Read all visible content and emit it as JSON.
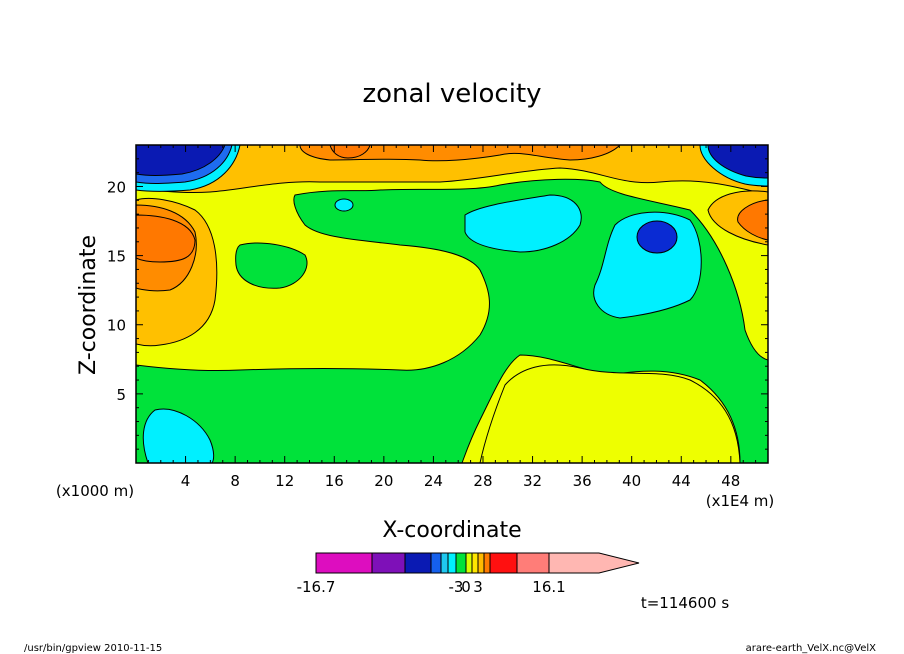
{
  "chart_data": {
    "type": "heatmap",
    "title": "zonal velocity",
    "xlabel": "X-coordinate",
    "ylabel": "Z-coordinate",
    "x_unit": "(x1E4 m)",
    "y_unit": "(x1000 m)",
    "xlim": [
      0,
      51
    ],
    "ylim": [
      0,
      23
    ],
    "x_ticks": [
      4,
      8,
      12,
      16,
      20,
      24,
      28,
      32,
      36,
      40,
      44,
      48
    ],
    "y_ticks": [
      5,
      10,
      15,
      20
    ],
    "colorbar": {
      "colors": [
        "#dd0dbf",
        "#7e10b8",
        "#0a1ab3",
        "#1560ec",
        "#1fc8f0",
        "#00f0ff",
        "#00e23a",
        "#d8ff00",
        "#ffe600",
        "#ffba00",
        "#ff7a00",
        "#ff1010",
        "#ff7d78",
        "#ffb7b2"
      ],
      "labels": [
        {
          "text": "-16.7",
          "value": -16.7
        },
        {
          "text": "-3",
          "value": -3
        },
        {
          "text": "0",
          "value": 0
        },
        {
          "text": "3",
          "value": 3
        },
        {
          "text": "16.1",
          "value": 16.1
        }
      ]
    },
    "time_label": "t=114600 s",
    "grid": false
  },
  "footer": {
    "left": "/usr/bin/gpview  2010-11-15",
    "right": "arare-earth_VelX.nc@VelX"
  }
}
